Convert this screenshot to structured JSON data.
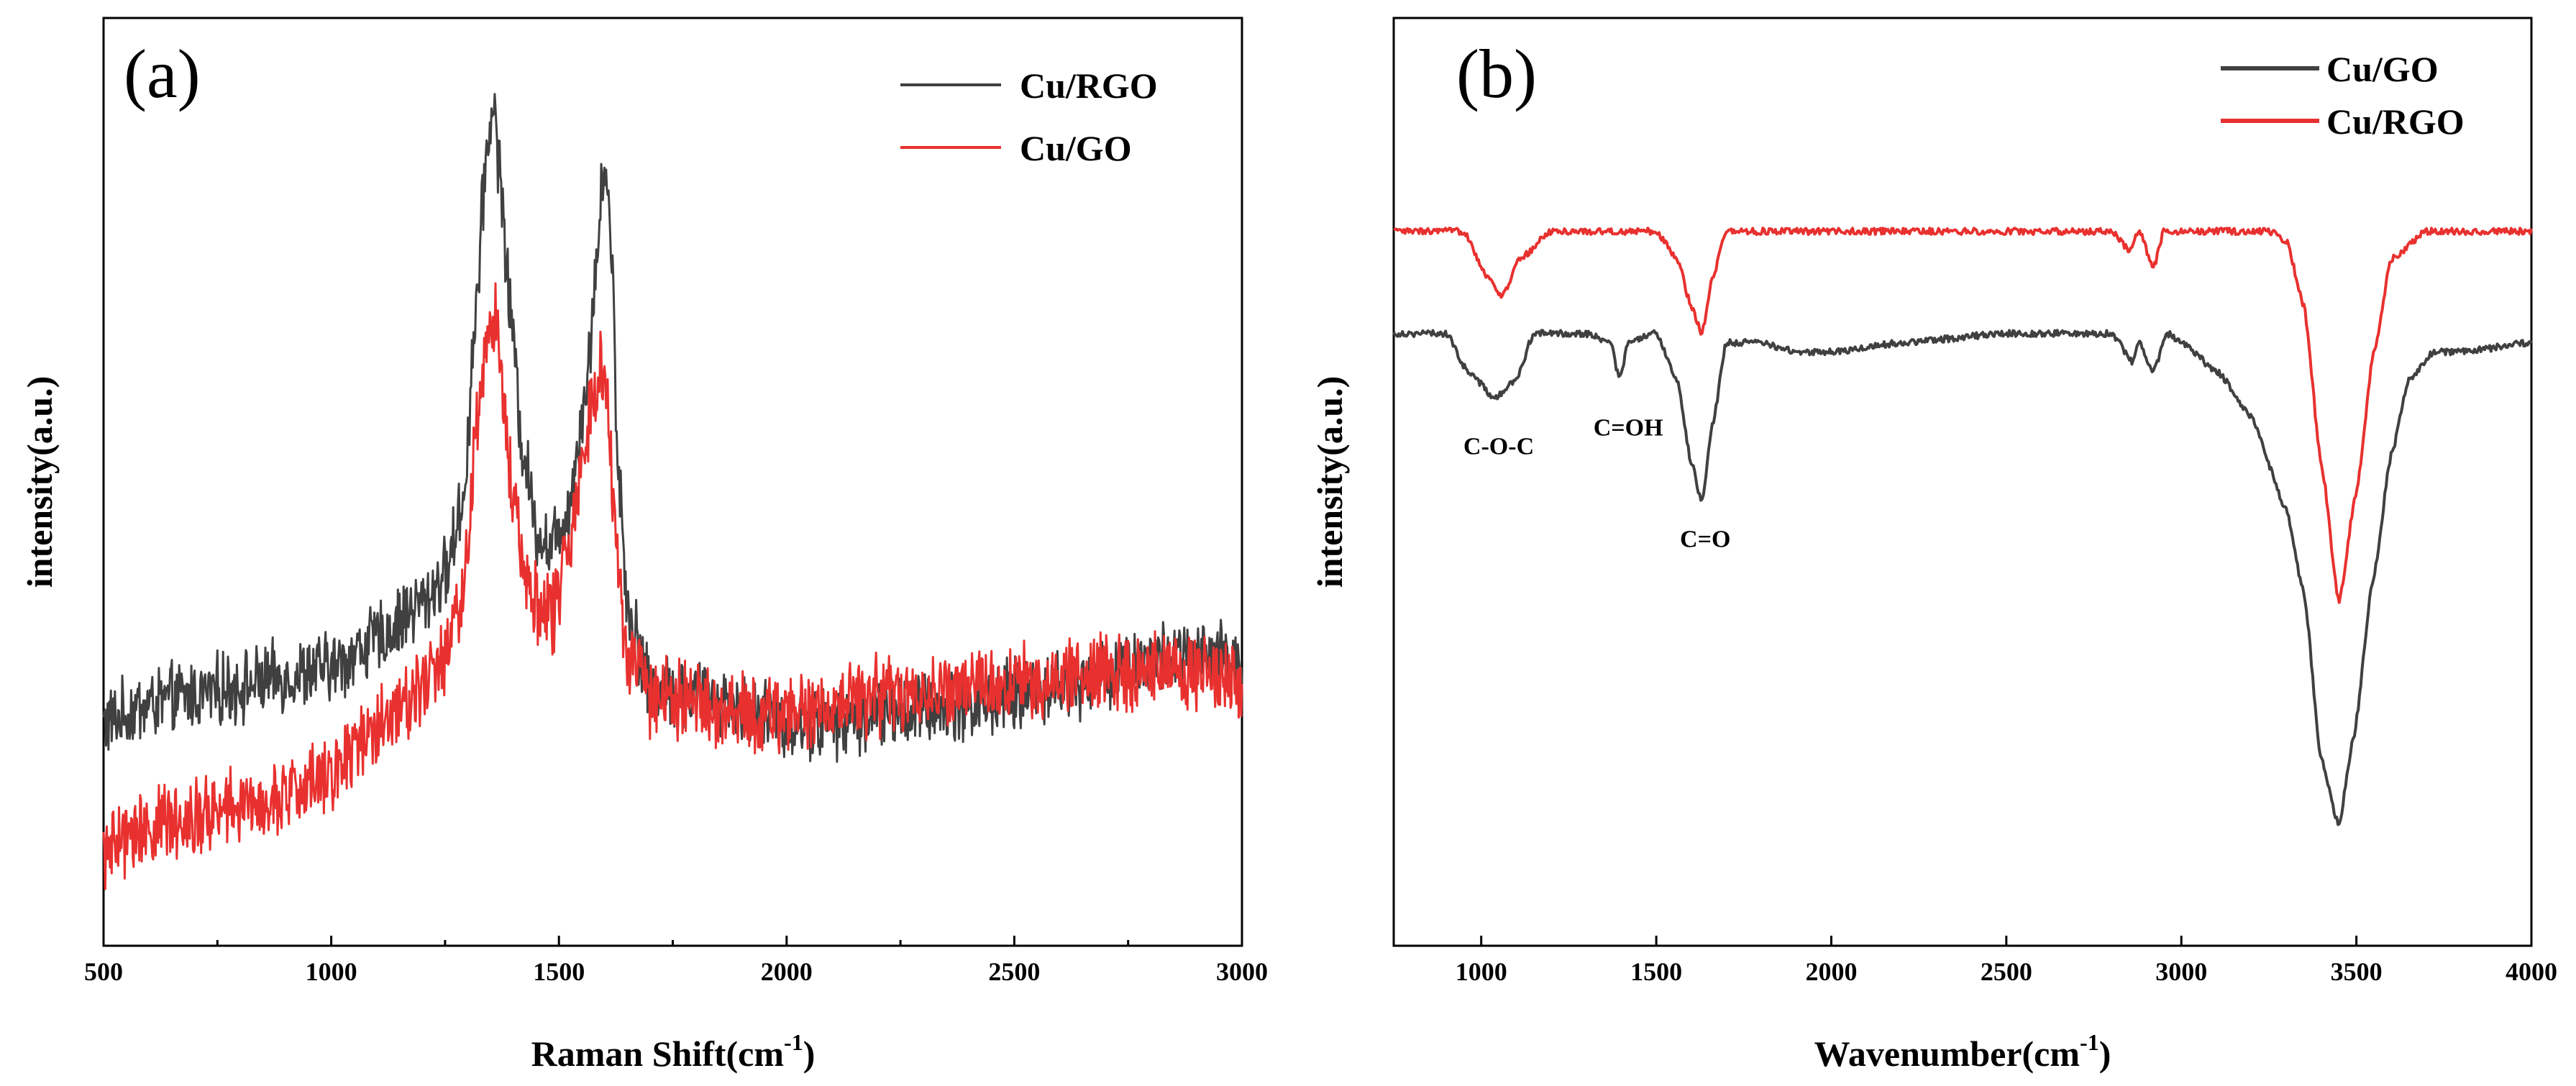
{
  "colors": {
    "black_series": "#404040",
    "red_series": "#e8312f",
    "axis": "#000000"
  },
  "chart_data": [
    {
      "panel": "(a)",
      "type": "line",
      "xlabel": "Raman Shift(cm",
      "xlabel_sup": "-1",
      "xlabel_close": ")",
      "ylabel": "intensity(a.u.)",
      "xlim": [
        500,
        3000
      ],
      "ylim": [
        0,
        100
      ],
      "xticks": [
        500,
        1000,
        1500,
        2000,
        2500,
        3000
      ],
      "legend": {
        "position": "top-right"
      },
      "series": [
        {
          "name": "Cu/RGO",
          "color": "#404040",
          "noise": 3.2,
          "points": [
            [
              500,
              24
            ],
            [
              600,
              26
            ],
            [
              700,
              27
            ],
            [
              800,
              28
            ],
            [
              900,
              29
            ],
            [
              1000,
              30
            ],
            [
              1100,
              33
            ],
            [
              1200,
              37
            ],
            [
              1250,
              40
            ],
            [
              1290,
              48
            ],
            [
              1320,
              70
            ],
            [
              1340,
              85
            ],
            [
              1355,
              91
            ],
            [
              1370,
              84
            ],
            [
              1390,
              70
            ],
            [
              1420,
              54
            ],
            [
              1450,
              45
            ],
            [
              1480,
              43
            ],
            [
              1520,
              47
            ],
            [
              1560,
              60
            ],
            [
              1585,
              75
            ],
            [
              1600,
              85
            ],
            [
              1615,
              76
            ],
            [
              1630,
              52
            ],
            [
              1650,
              37
            ],
            [
              1700,
              28
            ],
            [
              1800,
              27
            ],
            [
              1900,
              26
            ],
            [
              2000,
              24
            ],
            [
              2100,
              24
            ],
            [
              2200,
              25
            ],
            [
              2400,
              26
            ],
            [
              2600,
              28
            ],
            [
              2800,
              31
            ],
            [
              3000,
              31
            ]
          ]
        },
        {
          "name": "Cu/GO",
          "color": "#e8312f",
          "noise": 3.5,
          "points": [
            [
              500,
              10
            ],
            [
              600,
              13
            ],
            [
              700,
              14
            ],
            [
              800,
              15
            ],
            [
              900,
              16
            ],
            [
              1000,
              19
            ],
            [
              1100,
              24
            ],
            [
              1200,
              28
            ],
            [
              1250,
              31
            ],
            [
              1290,
              38
            ],
            [
              1320,
              56
            ],
            [
              1345,
              66
            ],
            [
              1360,
              68
            ],
            [
              1380,
              58
            ],
            [
              1400,
              48
            ],
            [
              1430,
              40
            ],
            [
              1460,
              36
            ],
            [
              1490,
              36
            ],
            [
              1520,
              43
            ],
            [
              1550,
              52
            ],
            [
              1575,
              60
            ],
            [
              1590,
              63
            ],
            [
              1605,
              58
            ],
            [
              1625,
              44
            ],
            [
              1650,
              31
            ],
            [
              1700,
              27
            ],
            [
              1800,
              26
            ],
            [
              1900,
              25
            ],
            [
              2000,
              25
            ],
            [
              2100,
              26
            ],
            [
              2200,
              27
            ],
            [
              2400,
              28
            ],
            [
              2600,
              29
            ],
            [
              2800,
              30
            ],
            [
              3000,
              29
            ]
          ]
        }
      ]
    },
    {
      "panel": "(b)",
      "type": "line",
      "xlabel": "Wavenumber(cm",
      "xlabel_sup": "-1",
      "xlabel_close": ")",
      "ylabel": "intensity(a.u.)",
      "xlim": [
        750,
        4000
      ],
      "ylim": [
        0,
        100
      ],
      "xticks": [
        1000,
        1500,
        2000,
        2500,
        3000,
        3500,
        4000
      ],
      "legend": {
        "position": "top-right"
      },
      "annotations": [
        {
          "text": "C-O-C",
          "x": 1050,
          "y": 53
        },
        {
          "text": "C=OH",
          "x": 1420,
          "y": 55
        },
        {
          "text": "C=O",
          "x": 1640,
          "y": 43
        }
      ],
      "series": [
        {
          "name": "Cu/GO",
          "color": "#404040",
          "noise": 0.35,
          "points": [
            [
              750,
              66
            ],
            [
              900,
              66
            ],
            [
              960,
              62
            ],
            [
              1040,
              59
            ],
            [
              1100,
              61
            ],
            [
              1150,
              66
            ],
            [
              1300,
              66
            ],
            [
              1370,
              65
            ],
            [
              1395,
              61
            ],
            [
              1420,
              65
            ],
            [
              1500,
              66
            ],
            [
              1560,
              61
            ],
            [
              1600,
              52
            ],
            [
              1630,
              48
            ],
            [
              1660,
              56
            ],
            [
              1700,
              65
            ],
            [
              1800,
              65
            ],
            [
              1900,
              64
            ],
            [
              2000,
              64
            ],
            [
              2200,
              65
            ],
            [
              2500,
              66
            ],
            [
              2800,
              66
            ],
            [
              2860,
              63
            ],
            [
              2880,
              65
            ],
            [
              2920,
              62
            ],
            [
              2960,
              66
            ],
            [
              3000,
              65
            ],
            [
              3100,
              62
            ],
            [
              3200,
              57
            ],
            [
              3300,
              47
            ],
            [
              3350,
              38
            ],
            [
              3400,
              20
            ],
            [
              3450,
              13
            ],
            [
              3490,
              22
            ],
            [
              3550,
              40
            ],
            [
              3600,
              53
            ],
            [
              3650,
              61
            ],
            [
              3720,
              64
            ],
            [
              3800,
              64
            ],
            [
              4000,
              65
            ]
          ]
        },
        {
          "name": "Cu/RGO",
          "color": "#e8312f",
          "noise": 0.35,
          "points": [
            [
              750,
              77
            ],
            [
              950,
              77
            ],
            [
              1020,
              72
            ],
            [
              1060,
              70
            ],
            [
              1110,
              74
            ],
            [
              1200,
              77
            ],
            [
              1500,
              77
            ],
            [
              1560,
              74
            ],
            [
              1600,
              69
            ],
            [
              1630,
              66
            ],
            [
              1660,
              72
            ],
            [
              1700,
              77
            ],
            [
              2000,
              77
            ],
            [
              2500,
              77
            ],
            [
              2800,
              77
            ],
            [
              2850,
              75
            ],
            [
              2880,
              77
            ],
            [
              2920,
              73
            ],
            [
              2950,
              77
            ],
            [
              3250,
              77
            ],
            [
              3300,
              76
            ],
            [
              3350,
              69
            ],
            [
              3400,
              52
            ],
            [
              3450,
              37
            ],
            [
              3500,
              49
            ],
            [
              3550,
              64
            ],
            [
              3600,
              74
            ],
            [
              3700,
              77
            ],
            [
              4000,
              77
            ]
          ]
        }
      ]
    }
  ]
}
